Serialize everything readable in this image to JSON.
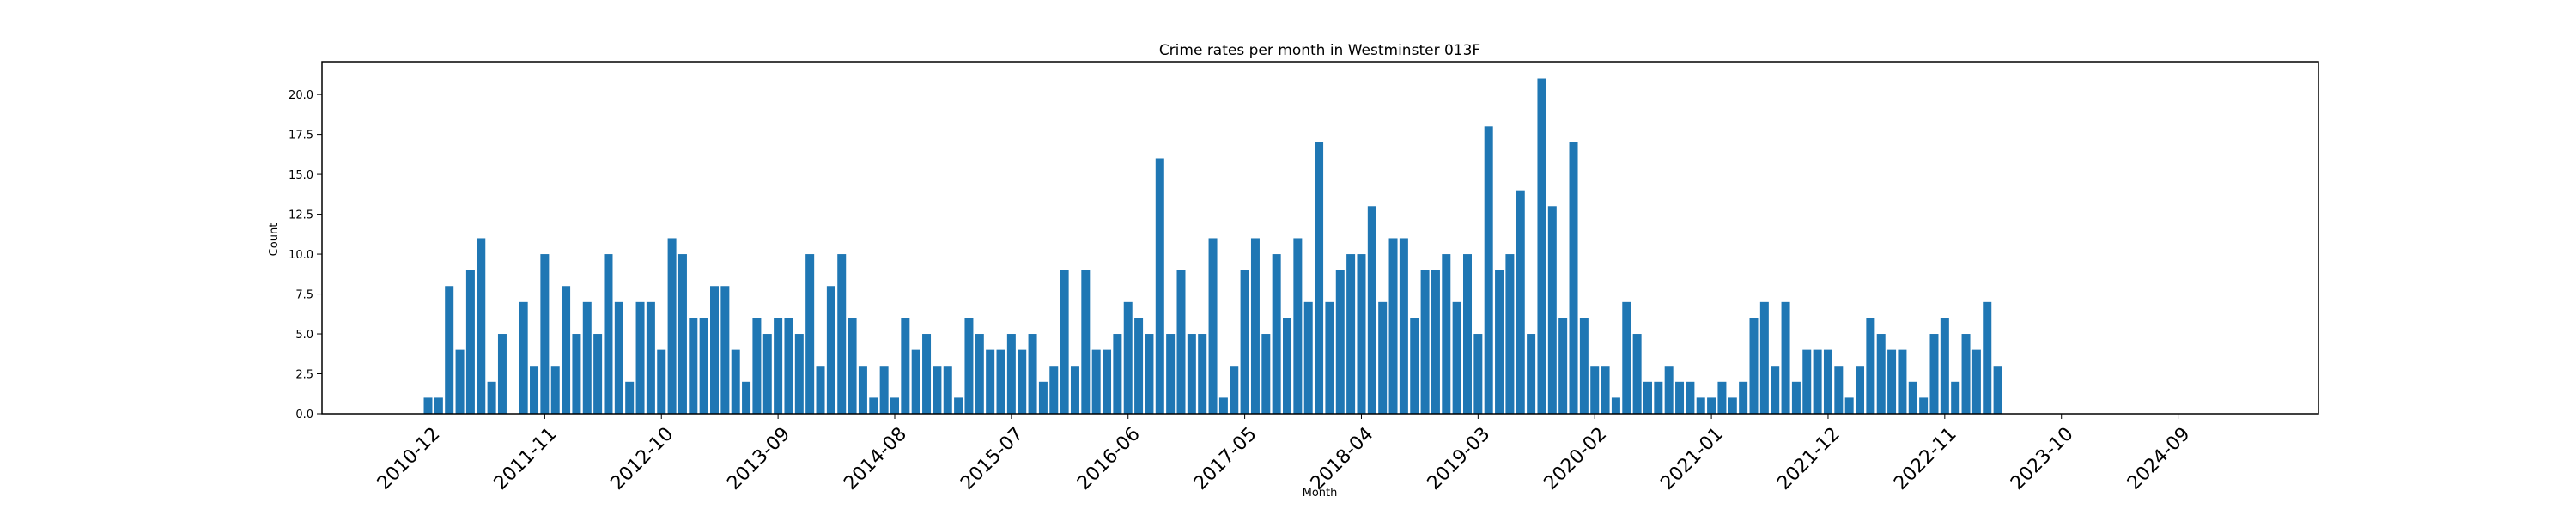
{
  "chart_data": {
    "type": "bar",
    "title": "Crime rates per month in Westminster 013F",
    "xlabel": "Month",
    "ylabel": "Count",
    "ylim": [
      0,
      22.05
    ],
    "yticks": [
      0,
      2.5,
      5,
      7.5,
      10,
      12.5,
      15,
      17.5,
      20
    ],
    "ytick_labels": [
      "0.0",
      "2.5",
      "5.0",
      "7.5",
      "10.0",
      "12.5",
      "15.0",
      "17.5",
      "20.0"
    ],
    "xtick_labels": [
      "2010-12",
      "2011-11",
      "2012-10",
      "2013-09",
      "2014-08",
      "2015-07",
      "2016-06",
      "2017-05",
      "2018-04",
      "2019-03",
      "2020-02",
      "2021-01",
      "2021-12",
      "2022-11",
      "2023-10",
      "2024-09"
    ],
    "bar_color": "#1f77b4",
    "grid": false,
    "legend": "none",
    "start_month": "2010-12",
    "values": [
      1,
      1,
      8,
      4,
      9,
      11,
      2,
      5,
      0,
      7,
      3,
      10,
      3,
      8,
      5,
      7,
      5,
      10,
      7,
      2,
      7,
      7,
      4,
      11,
      10,
      6,
      6,
      8,
      8,
      4,
      2,
      6,
      5,
      6,
      6,
      5,
      10,
      3,
      8,
      10,
      6,
      3,
      1,
      3,
      1,
      6,
      4,
      5,
      3,
      3,
      1,
      6,
      5,
      4,
      4,
      5,
      4,
      5,
      2,
      3,
      9,
      3,
      9,
      4,
      4,
      5,
      7,
      6,
      5,
      16,
      5,
      9,
      5,
      5,
      11,
      1,
      3,
      9,
      11,
      5,
      10,
      6,
      11,
      7,
      17,
      7,
      9,
      10,
      10,
      13,
      7,
      11,
      11,
      6,
      9,
      9,
      10,
      7,
      10,
      5,
      18,
      9,
      10,
      14,
      5,
      21,
      13,
      6,
      17,
      6,
      3,
      3,
      1,
      7,
      5,
      2,
      2,
      3,
      2,
      2,
      1,
      1,
      2,
      1,
      2,
      6,
      7,
      3,
      7,
      2,
      4,
      4,
      4,
      3,
      1,
      3,
      6,
      5,
      4,
      4,
      2,
      1,
      5,
      6,
      2,
      5,
      4,
      7,
      3
    ]
  }
}
